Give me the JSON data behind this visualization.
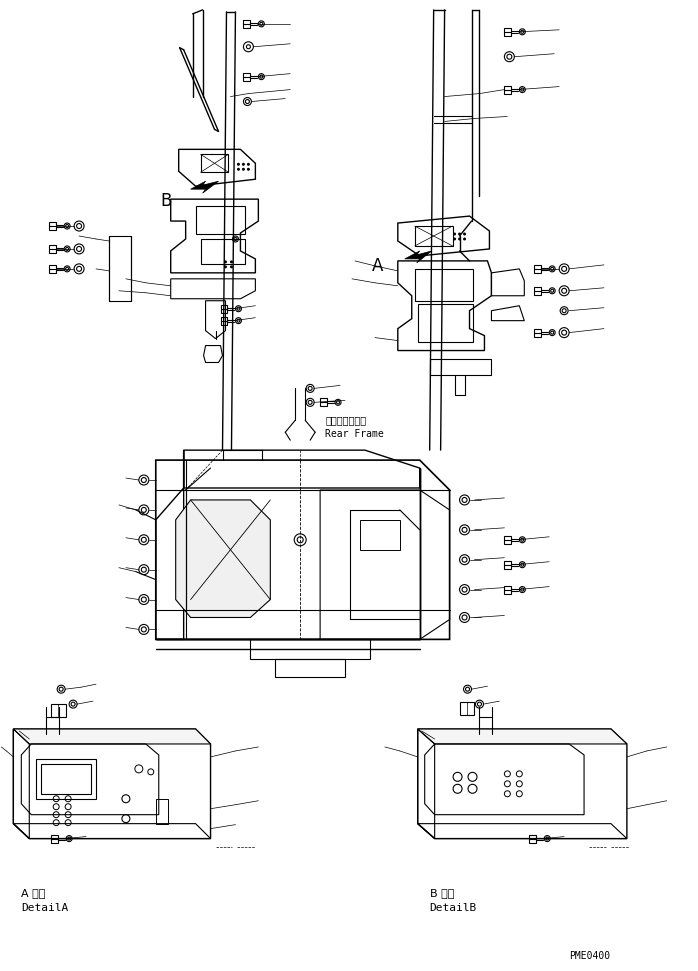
{
  "bg_color": "#ffffff",
  "line_color": "#000000",
  "fig_width": 6.98,
  "fig_height": 9.71,
  "dpi": 100,
  "bottom_left_label_jp": "A 詳細",
  "bottom_left_label_en": "DetailA",
  "bottom_right_label_jp": "B 詳細",
  "bottom_right_label_en": "DetailB",
  "label_A": "A",
  "label_B": "B",
  "rear_frame_jp": "リヤーフレーム",
  "rear_frame_en": "Rear Frame",
  "part_code": "PME0400"
}
